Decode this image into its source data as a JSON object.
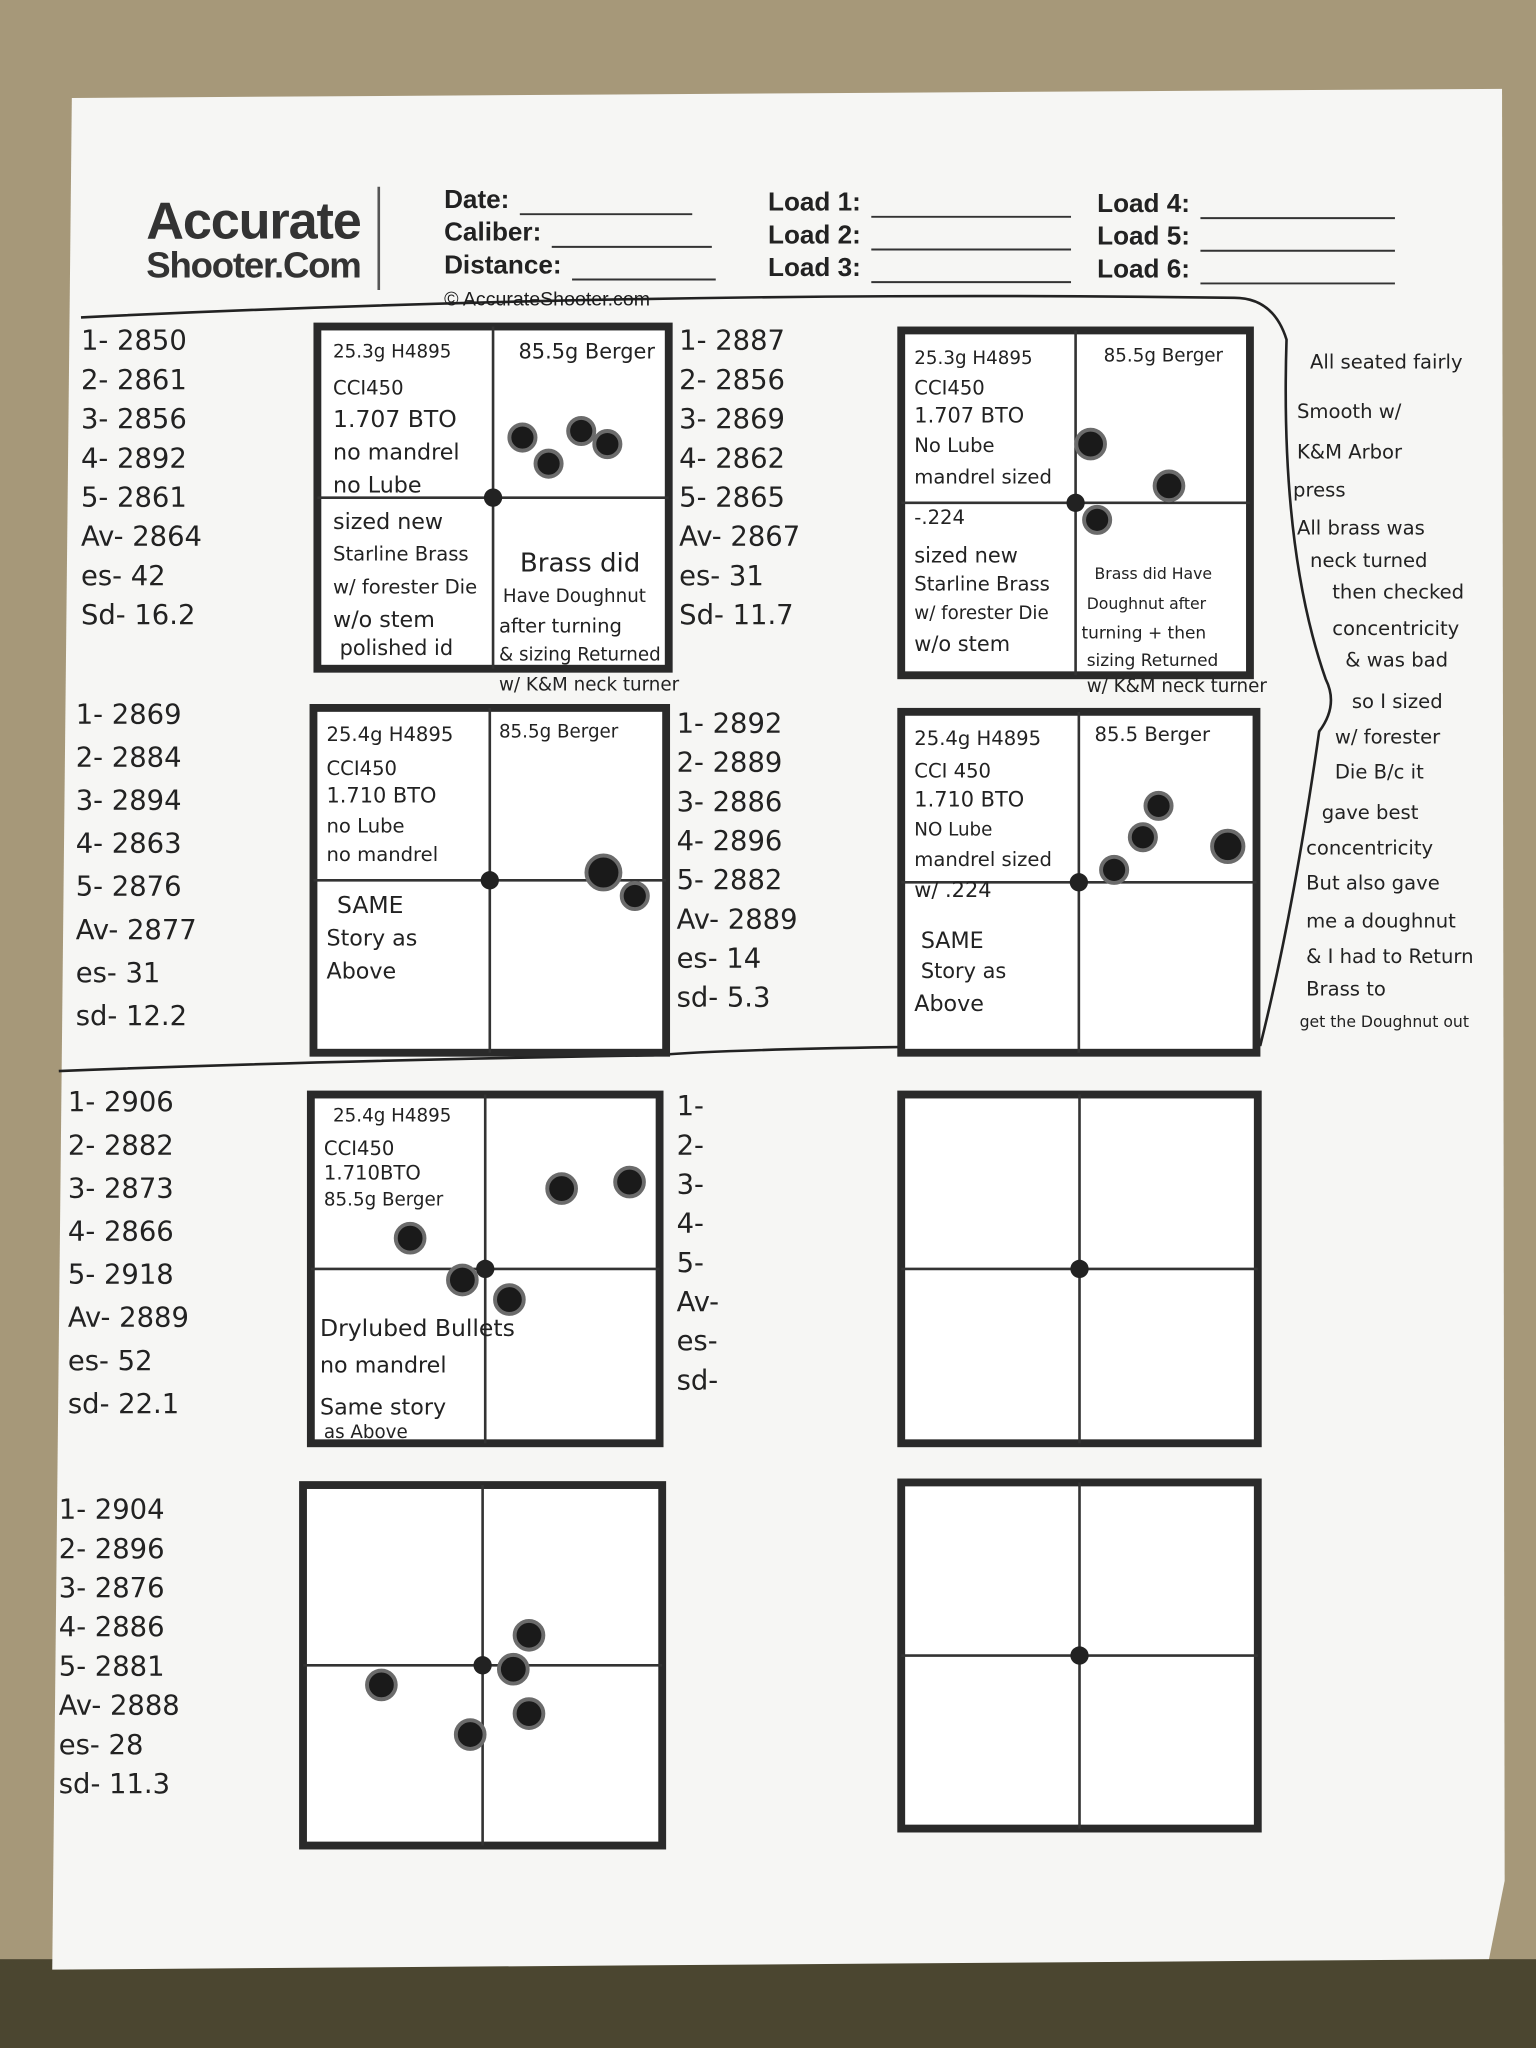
{
  "header": {
    "logo": [
      "Accurate",
      "Shooter.Com"
    ],
    "fields": [
      "Date:",
      "Caliber:",
      "Distance:",
      "Load 1:",
      "Load 2:",
      "Load 3:",
      "Load 4:",
      "Load 5:",
      "Load 6:"
    ],
    "copyright": "© AccurateShooter.com"
  },
  "shot_velocities": [
    [
      "1- 2850",
      "2- 2861",
      "3- 2856",
      "4- 2892",
      "5- 2861",
      "Av- 2864",
      "es- 42",
      "Sd- 16.2"
    ],
    [
      "1- 2887",
      "2- 2856",
      "3- 2869",
      "4- 2862",
      "5- 2865",
      "Av- 2867",
      "es- 31",
      "Sd- 11.7"
    ],
    [
      "1- 2869",
      "2- 2884",
      "3- 2894",
      "4- 2863",
      "5- 2876",
      "Av- 2877",
      "es- 31",
      "sd- 12.2"
    ],
    [
      "1- 2892",
      "2- 2889",
      "3- 2886",
      "4- 2896",
      "5- 2882",
      "Av- 2889",
      "es- 14",
      "sd- 5.3"
    ],
    [
      "1- 2906",
      "2- 2882",
      "3- 2873",
      "4- 2866",
      "5- 2918",
      "Av- 2889",
      "es- 52",
      "sd- 22.1"
    ],
    [
      "1-",
      "2-",
      "3-",
      "4-",
      "5-",
      "Av-",
      "es-",
      "sd-"
    ],
    [
      "1- 2904",
      "2- 2896",
      "3- 2876",
      "4- 2886",
      "5- 2881",
      "Av- 2888",
      "es- 28",
      "sd- 11.3"
    ]
  ],
  "target_notes": [
    [
      "25.3g H4895",
      "85.5g Berger",
      "CCI450",
      "1.707 BTO",
      "no mandrel",
      "no Lube",
      "sized new",
      "Starline Brass",
      "w/ forester Die",
      "w/o stem",
      "polished id",
      "Brass did",
      "Have Doughnut",
      "after turning",
      "& sizing Returned",
      "w/ K&M neck turner"
    ],
    [
      "25.3g H4895",
      "85.5g Berger",
      "CCI450",
      "1.707 BTO",
      "No Lube",
      "mandrel sized",
      "-.224",
      "sized new",
      "Starline Brass",
      "w/ forester Die",
      "w/o stem",
      "Brass did Have",
      "Doughnut after",
      "turning + then",
      "sizing Returned",
      "w/ K&M neck turner"
    ],
    [
      "25.4g H4895",
      "85.5g Berger",
      "CCI450",
      "1.710 BTO",
      "no Lube",
      "no mandrel",
      "SAME",
      "Story as",
      "Above"
    ],
    [
      "25.4g H4895",
      "85.5 Berger",
      "CCI 450",
      "1.710 BTO",
      "NO Lube",
      "mandrel sized",
      "w/ .224",
      "SAME",
      "Story as",
      "Above"
    ],
    [
      "25.4g H4895",
      "CCI450",
      "1.710BTO",
      "85.5g Berger",
      "Drylubed Bullets",
      "no mandrel",
      "Same story",
      "as Above"
    ]
  ],
  "side_note": [
    "All seated fairly",
    "Smooth w/",
    "K&M Arbor",
    "press",
    "All brass was",
    "neck turned",
    "then checked",
    "concentricity",
    "& was bad",
    "so I sized",
    "w/ forester",
    "Die B/c it",
    "gave best",
    "concentricity",
    "But also gave",
    "me a doughnut",
    "& I had to Return",
    "Brass to",
    "get the Doughnut out"
  ]
}
